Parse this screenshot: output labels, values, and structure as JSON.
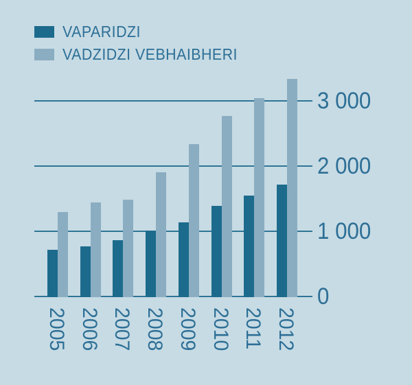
{
  "colors": {
    "background": "#c7dbe4",
    "text": "#2d6f96",
    "grid": "#2f7596",
    "bar_dark": "#1c6b8c",
    "bar_light": "#8badc1"
  },
  "legend": {
    "items": [
      {
        "label": "VAPARIDZI",
        "color": "#1c6b8c"
      },
      {
        "label": "VADZIDZI VEBHAIBHERI",
        "color": "#8badc1"
      }
    ],
    "position": "top-left"
  },
  "chart_data": {
    "type": "bar",
    "title": "",
    "xlabel": "",
    "ylabel": "",
    "categories": [
      "2005",
      "2006",
      "2007",
      "2008",
      "2009",
      "2010",
      "2011",
      "2012"
    ],
    "series": [
      {
        "name": "VAPARIDZI",
        "color": "#1c6b8c",
        "values": [
          730,
          780,
          870,
          1020,
          1150,
          1400,
          1560,
          1730
        ]
      },
      {
        "name": "VADZIDZI VEBHAIBHERI",
        "color": "#8badc1",
        "values": [
          1310,
          1450,
          1490,
          1915,
          2350,
          2775,
          3050,
          3345
        ]
      }
    ],
    "ylim": [
      0,
      3500
    ],
    "yticks": [
      0,
      1000,
      2000,
      3000
    ],
    "ytick_labels": [
      "0",
      "1 000",
      "2 000",
      "3 000"
    ],
    "grid": true,
    "xtick_rotation_deg": 90,
    "legend_position": "top-left",
    "ytick_side": "right"
  }
}
